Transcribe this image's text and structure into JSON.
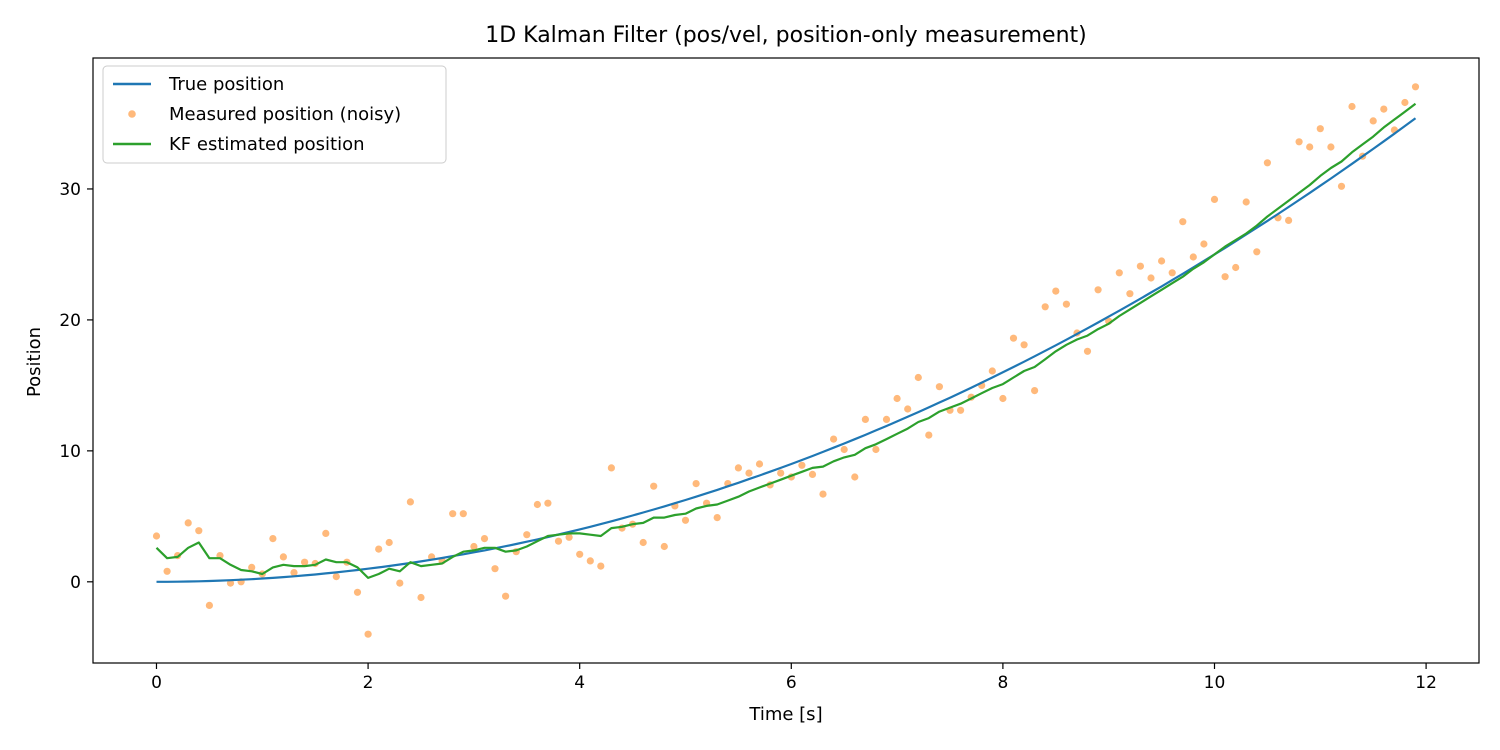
{
  "chart_data": {
    "type": "line",
    "title": "1D Kalman Filter (pos/vel, position-only measurement)",
    "xlabel": "Time [s]",
    "ylabel": "Position",
    "xlim": [
      -0.6,
      12.5
    ],
    "ylim": [
      -6.2,
      40.0
    ],
    "xticks": [
      0,
      2,
      4,
      6,
      8,
      10,
      12
    ],
    "yticks": [
      0,
      10,
      20,
      30
    ],
    "grid": false,
    "legend_position": "top-left",
    "colors": {
      "true_position": "#1f77b4",
      "measured": "#ff7f0e",
      "estimated": "#2ca02c"
    },
    "x": [
      0.0,
      0.1,
      0.2,
      0.3,
      0.4,
      0.5,
      0.6,
      0.7,
      0.8,
      0.9,
      1.0,
      1.1,
      1.2,
      1.3,
      1.4,
      1.5,
      1.6,
      1.7,
      1.8,
      1.9,
      2.0,
      2.1,
      2.2,
      2.3,
      2.4,
      2.5,
      2.6,
      2.7,
      2.8,
      2.9,
      3.0,
      3.1,
      3.2,
      3.3,
      3.4,
      3.5,
      3.6,
      3.7,
      3.8,
      3.9,
      4.0,
      4.1,
      4.2,
      4.3,
      4.4,
      4.5,
      4.6,
      4.7,
      4.8,
      4.9,
      5.0,
      5.1,
      5.2,
      5.3,
      5.4,
      5.5,
      5.6,
      5.7,
      5.8,
      5.9,
      6.0,
      6.1,
      6.2,
      6.3,
      6.4,
      6.5,
      6.6,
      6.7,
      6.8,
      6.9,
      7.0,
      7.1,
      7.2,
      7.3,
      7.4,
      7.5,
      7.6,
      7.7,
      7.8,
      7.9,
      8.0,
      8.1,
      8.2,
      8.3,
      8.4,
      8.5,
      8.6,
      8.7,
      8.8,
      8.9,
      9.0,
      9.1,
      9.2,
      9.3,
      9.4,
      9.5,
      9.6,
      9.7,
      9.8,
      9.9,
      10.0,
      10.1,
      10.2,
      10.3,
      10.4,
      10.5,
      10.6,
      10.7,
      10.8,
      10.9,
      11.0,
      11.1,
      11.2,
      11.3,
      11.4,
      11.5,
      11.6,
      11.7,
      11.8,
      11.9
    ],
    "series": [
      {
        "name": "True position",
        "style": "line",
        "values": [
          0.0,
          0.003,
          0.01,
          0.023,
          0.04,
          0.063,
          0.09,
          0.12,
          0.16,
          0.2,
          0.25,
          0.3,
          0.36,
          0.42,
          0.49,
          0.56,
          0.64,
          0.72,
          0.81,
          0.9,
          1.0,
          1.1,
          1.21,
          1.32,
          1.44,
          1.56,
          1.69,
          1.82,
          1.96,
          2.1,
          2.25,
          2.4,
          2.56,
          2.72,
          2.89,
          3.06,
          3.24,
          3.42,
          3.61,
          3.8,
          4.0,
          4.2,
          4.41,
          4.62,
          4.84,
          5.06,
          5.29,
          5.52,
          5.76,
          6.0,
          6.25,
          6.5,
          6.76,
          7.02,
          7.29,
          7.56,
          7.84,
          8.12,
          8.41,
          8.7,
          9.0,
          9.3,
          9.61,
          9.92,
          10.24,
          10.56,
          10.89,
          11.22,
          11.56,
          11.9,
          12.25,
          12.6,
          12.96,
          13.32,
          13.69,
          14.06,
          14.44,
          14.82,
          15.21,
          15.6,
          16.0,
          16.4,
          16.81,
          17.22,
          17.64,
          18.06,
          18.49,
          18.92,
          19.36,
          19.8,
          20.25,
          20.7,
          21.16,
          21.62,
          22.09,
          22.56,
          23.04,
          23.52,
          24.01,
          24.5,
          25.0,
          25.5,
          26.01,
          26.52,
          27.04,
          27.56,
          28.09,
          28.62,
          29.16,
          29.7,
          30.25,
          30.8,
          31.36,
          31.92,
          32.49,
          33.06,
          33.64,
          34.22,
          34.81,
          35.4
        ]
      },
      {
        "name": "Measured position (noisy)",
        "style": "scatter",
        "values": [
          3.5,
          0.8,
          2.0,
          4.5,
          3.9,
          -1.8,
          2.0,
          -0.1,
          0.0,
          1.1,
          0.6,
          3.3,
          1.9,
          0.7,
          1.5,
          1.4,
          3.7,
          0.4,
          1.5,
          -0.8,
          -4.0,
          2.5,
          3.0,
          -0.1,
          6.1,
          -1.2,
          1.9,
          1.6,
          5.2,
          5.2,
          2.7,
          3.3,
          1.0,
          -1.1,
          2.3,
          3.6,
          5.9,
          6.0,
          3.1,
          3.4,
          2.1,
          1.6,
          1.2,
          8.7,
          4.1,
          4.4,
          3.0,
          7.3,
          2.7,
          5.8,
          4.7,
          7.5,
          6.0,
          4.9,
          7.5,
          8.7,
          8.3,
          9.0,
          7.4,
          8.3,
          8.0,
          8.9,
          8.2,
          6.7,
          10.9,
          10.1,
          8.0,
          12.4,
          10.1,
          12.4,
          14.0,
          13.2,
          15.6,
          11.2,
          14.9,
          13.1,
          13.1,
          14.1,
          15.0,
          16.1,
          14.0,
          18.6,
          18.1,
          14.6,
          21.0,
          22.2,
          21.2,
          19.0,
          17.6,
          22.3,
          19.9,
          23.6,
          22.0,
          24.1,
          23.2,
          24.5,
          23.6,
          27.5,
          24.8,
          25.8,
          29.2,
          23.3,
          24.0,
          29.0,
          25.2,
          32.0,
          27.8,
          27.6,
          33.6,
          33.2,
          34.6,
          33.2,
          30.2,
          36.3,
          32.5,
          35.2,
          36.1,
          34.5,
          36.6,
          37.8
        ]
      },
      {
        "name": "KF estimated position",
        "style": "line",
        "values": [
          2.6,
          1.8,
          1.9,
          2.6,
          3.0,
          1.8,
          1.8,
          1.3,
          0.9,
          0.8,
          0.6,
          1.1,
          1.3,
          1.2,
          1.2,
          1.3,
          1.7,
          1.5,
          1.5,
          1.1,
          0.3,
          0.6,
          1.0,
          0.8,
          1.5,
          1.2,
          1.3,
          1.4,
          1.9,
          2.3,
          2.4,
          2.6,
          2.6,
          2.3,
          2.4,
          2.7,
          3.1,
          3.5,
          3.6,
          3.7,
          3.7,
          3.6,
          3.5,
          4.1,
          4.2,
          4.4,
          4.5,
          4.9,
          4.9,
          5.1,
          5.2,
          5.6,
          5.8,
          5.9,
          6.2,
          6.5,
          6.9,
          7.2,
          7.5,
          7.8,
          8.1,
          8.4,
          8.7,
          8.8,
          9.2,
          9.5,
          9.7,
          10.2,
          10.5,
          10.9,
          11.3,
          11.7,
          12.2,
          12.5,
          13.0,
          13.3,
          13.6,
          14.0,
          14.4,
          14.8,
          15.1,
          15.6,
          16.1,
          16.4,
          17.0,
          17.6,
          18.1,
          18.5,
          18.8,
          19.3,
          19.7,
          20.3,
          20.8,
          21.3,
          21.8,
          22.3,
          22.8,
          23.3,
          23.9,
          24.4,
          25.0,
          25.6,
          26.1,
          26.6,
          27.2,
          27.9,
          28.5,
          29.1,
          29.7,
          30.3,
          31.0,
          31.6,
          32.1,
          32.8,
          33.4,
          34.0,
          34.7,
          35.3,
          35.9,
          36.5
        ]
      }
    ]
  }
}
